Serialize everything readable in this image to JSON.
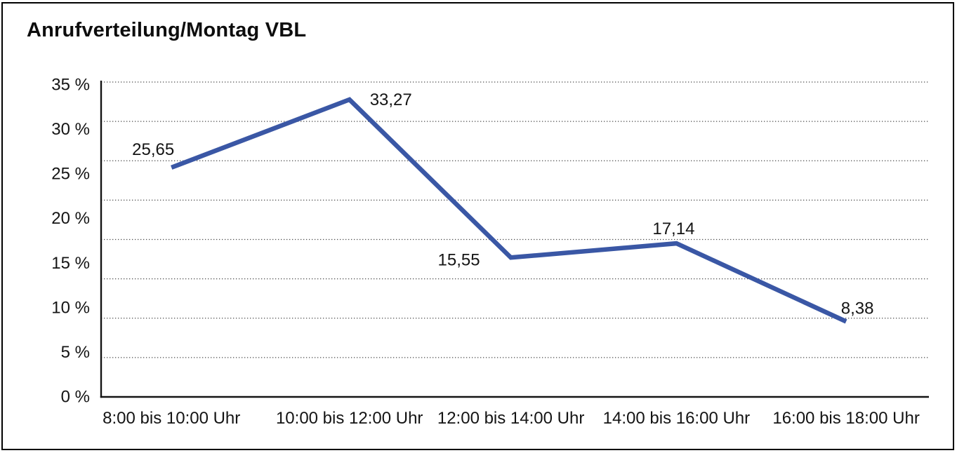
{
  "frame": {
    "border_color": "#000000",
    "background_color": "#ffffff"
  },
  "chart_data": {
    "type": "line",
    "title": "Anrufverteilung/Montag VBL",
    "categories": [
      "8:00 bis 10:00 Uhr",
      "10:00 bis 12:00 Uhr",
      "12:00 bis 14:00 Uhr",
      "14:00 bis 16:00 Uhr",
      "16:00 bis 18:00 Uhr"
    ],
    "series": [
      {
        "values": [
          25.65,
          33.27,
          15.55,
          17.14,
          8.38
        ],
        "color": "#3a57a5"
      }
    ],
    "point_labels": [
      "25,65",
      "33,27",
      "15,55",
      "17,14",
      "8,38"
    ],
    "y_ticks": [
      {
        "value": 35,
        "label": "35 %"
      },
      {
        "value": 30,
        "label": "30 %"
      },
      {
        "value": 25,
        "label": "25 %"
      },
      {
        "value": 20,
        "label": "20 %"
      },
      {
        "value": 15,
        "label": "15 %"
      },
      {
        "value": 10,
        "label": "10 %"
      },
      {
        "value": 5,
        "label": "5 %"
      },
      {
        "value": 0,
        "label": "0 %"
      }
    ],
    "ylim": [
      0,
      35
    ],
    "grid": {
      "style": "dotted",
      "orientation": "horizontal",
      "line_count": 8,
      "color": "#4a4a4a"
    },
    "axis_color": "#141414",
    "text_color": "#141414",
    "legend": "none"
  }
}
